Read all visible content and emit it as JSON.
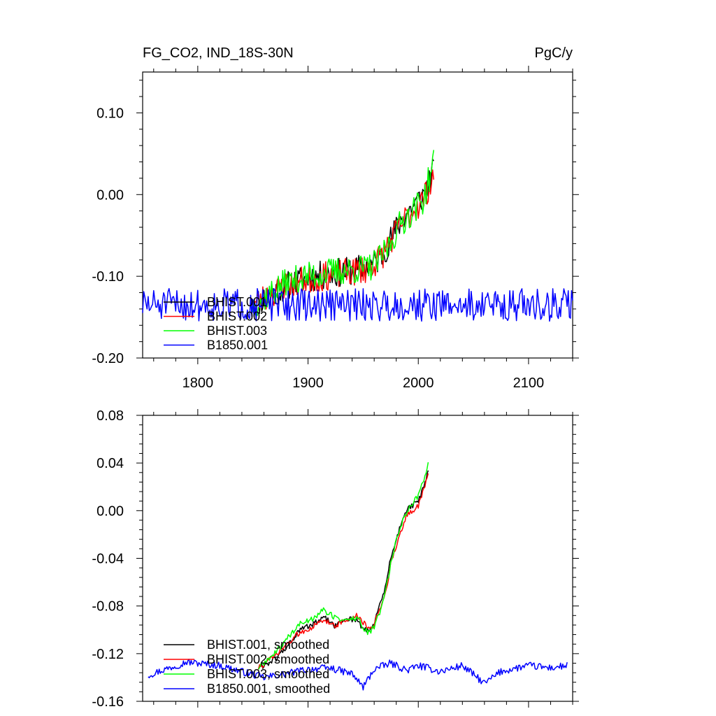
{
  "header": {
    "left_title": "FG_CO2, IND_18S-30N",
    "right_title": "PgC/y"
  },
  "chart_data": [
    {
      "type": "line",
      "title": "FG_CO2, IND_18S-30N",
      "units": "PgC/y",
      "xlim": [
        1750,
        2140
      ],
      "ylim": [
        -0.2,
        0.15
      ],
      "x_ticks": [
        1800,
        1900,
        2000,
        2100
      ],
      "x_tick_labels": [
        "1800",
        "1900",
        "2000",
        "2100"
      ],
      "y_ticks": [
        -0.2,
        -0.1,
        0.0,
        0.1
      ],
      "y_tick_labels": [
        "-0.20",
        "-0.10",
        "0.00",
        "0.10"
      ],
      "legend_position": "bottom-left",
      "series": [
        {
          "name": "BHIST.001",
          "color": "#000000",
          "x_start": 1850,
          "x_end": 2014,
          "anchors": [
            [
              1850,
              -0.135
            ],
            [
              1880,
              -0.112
            ],
            [
              1900,
              -0.102
            ],
            [
              1920,
              -0.097
            ],
            [
              1940,
              -0.093
            ],
            [
              1955,
              -0.088
            ],
            [
              1965,
              -0.078
            ],
            [
              1975,
              -0.055
            ],
            [
              1985,
              -0.03
            ],
            [
              1995,
              -0.015
            ],
            [
              2005,
              0.0
            ],
            [
              2014,
              0.03
            ]
          ],
          "noise": 0.018,
          "seed": 11
        },
        {
          "name": "BHIST.002",
          "color": "#ff0000",
          "x_start": 1850,
          "x_end": 2014,
          "anchors": [
            [
              1850,
              -0.135
            ],
            [
              1880,
              -0.11
            ],
            [
              1900,
              -0.104
            ],
            [
              1920,
              -0.099
            ],
            [
              1940,
              -0.095
            ],
            [
              1955,
              -0.09
            ],
            [
              1965,
              -0.078
            ],
            [
              1975,
              -0.057
            ],
            [
              1985,
              -0.035
            ],
            [
              1995,
              -0.02
            ],
            [
              2005,
              -0.005
            ],
            [
              2014,
              0.025
            ]
          ],
          "noise": 0.018,
          "seed": 23
        },
        {
          "name": "BHIST.003",
          "color": "#00ff00",
          "x_start": 1850,
          "x_end": 2014,
          "anchors": [
            [
              1850,
              -0.135
            ],
            [
              1880,
              -0.108
            ],
            [
              1900,
              -0.1
            ],
            [
              1920,
              -0.095
            ],
            [
              1940,
              -0.092
            ],
            [
              1955,
              -0.09
            ],
            [
              1965,
              -0.08
            ],
            [
              1975,
              -0.058
            ],
            [
              1985,
              -0.033
            ],
            [
              1995,
              -0.02
            ],
            [
              2005,
              -0.005
            ],
            [
              2014,
              0.04
            ]
          ],
          "noise": 0.018,
          "seed": 37
        },
        {
          "name": "B1850.001",
          "color": "#0000ff",
          "x_start": 1750,
          "x_end": 2140,
          "anchors": [
            [
              1750,
              -0.135
            ],
            [
              2140,
              -0.135
            ]
          ],
          "noise": 0.02,
          "seed": 51
        }
      ]
    },
    {
      "type": "line",
      "xlim": [
        1750,
        2140
      ],
      "ylim": [
        -0.16,
        0.08
      ],
      "x_ticks": [
        1800,
        1900,
        2000,
        2100
      ],
      "y_ticks": [
        -0.16,
        -0.12,
        -0.08,
        -0.04,
        0.0,
        0.04,
        0.08
      ],
      "y_tick_labels": [
        "-0.16",
        "-0.12",
        "-0.08",
        "-0.04",
        "0.00",
        "0.04",
        "0.08"
      ],
      "legend_position": "bottom-left",
      "series": [
        {
          "name": "BHIST.001, smoothed",
          "color": "#000000",
          "x_start": 1855,
          "x_end": 2009,
          "anchors": [
            [
              1855,
              -0.132
            ],
            [
              1870,
              -0.125
            ],
            [
              1880,
              -0.115
            ],
            [
              1893,
              -0.1
            ],
            [
              1905,
              -0.095
            ],
            [
              1915,
              -0.09
            ],
            [
              1925,
              -0.097
            ],
            [
              1935,
              -0.09
            ],
            [
              1945,
              -0.092
            ],
            [
              1950,
              -0.1
            ],
            [
              1955,
              -0.101
            ],
            [
              1960,
              -0.095
            ],
            [
              1965,
              -0.08
            ],
            [
              1970,
              -0.065
            ],
            [
              1975,
              -0.04
            ],
            [
              1980,
              -0.025
            ],
            [
              1985,
              -0.008
            ],
            [
              1990,
              0.002
            ],
            [
              1995,
              0.004
            ],
            [
              2000,
              0.008
            ],
            [
              2005,
              0.02
            ],
            [
              2009,
              0.032
            ]
          ],
          "noise": 0.0025,
          "seed": 61
        },
        {
          "name": "BHIST.002, smoothed",
          "color": "#ff0000",
          "x_start": 1855,
          "x_end": 2009,
          "anchors": [
            [
              1855,
              -0.132
            ],
            [
              1870,
              -0.122
            ],
            [
              1880,
              -0.113
            ],
            [
              1893,
              -0.102
            ],
            [
              1905,
              -0.097
            ],
            [
              1915,
              -0.092
            ],
            [
              1925,
              -0.096
            ],
            [
              1935,
              -0.092
            ],
            [
              1945,
              -0.088
            ],
            [
              1950,
              -0.094
            ],
            [
              1955,
              -0.1
            ],
            [
              1960,
              -0.095
            ],
            [
              1965,
              -0.082
            ],
            [
              1970,
              -0.07
            ],
            [
              1975,
              -0.045
            ],
            [
              1980,
              -0.03
            ],
            [
              1985,
              -0.015
            ],
            [
              1990,
              -0.003
            ],
            [
              1995,
              0.0
            ],
            [
              2000,
              0.004
            ],
            [
              2005,
              0.018
            ],
            [
              2009,
              0.03
            ]
          ],
          "noise": 0.0025,
          "seed": 73
        },
        {
          "name": "BHIST.003, smoothed",
          "color": "#00ff00",
          "x_start": 1855,
          "x_end": 2009,
          "anchors": [
            [
              1855,
              -0.132
            ],
            [
              1870,
              -0.12
            ],
            [
              1880,
              -0.108
            ],
            [
              1893,
              -0.095
            ],
            [
              1905,
              -0.09
            ],
            [
              1913,
              -0.083
            ],
            [
              1925,
              -0.09
            ],
            [
              1935,
              -0.092
            ],
            [
              1945,
              -0.09
            ],
            [
              1950,
              -0.098
            ],
            [
              1955,
              -0.103
            ],
            [
              1960,
              -0.098
            ],
            [
              1965,
              -0.085
            ],
            [
              1970,
              -0.068
            ],
            [
              1975,
              -0.045
            ],
            [
              1980,
              -0.025
            ],
            [
              1985,
              -0.01
            ],
            [
              1990,
              0.0
            ],
            [
              1995,
              0.007
            ],
            [
              2000,
              0.012
            ],
            [
              2005,
              0.027
            ],
            [
              2009,
              0.04
            ]
          ],
          "noise": 0.0025,
          "seed": 89
        },
        {
          "name": "B1850.001, smoothed",
          "color": "#0000ff",
          "x_start": 1755,
          "x_end": 2135,
          "anchors": [
            [
              1755,
              -0.138
            ],
            [
              1790,
              -0.127
            ],
            [
              1820,
              -0.13
            ],
            [
              1840,
              -0.135
            ],
            [
              1860,
              -0.14
            ],
            [
              1880,
              -0.137
            ],
            [
              1900,
              -0.133
            ],
            [
              1920,
              -0.132
            ],
            [
              1940,
              -0.137
            ],
            [
              1950,
              -0.148
            ],
            [
              1960,
              -0.133
            ],
            [
              1975,
              -0.128
            ],
            [
              1990,
              -0.134
            ],
            [
              2000,
              -0.13
            ],
            [
              2020,
              -0.135
            ],
            [
              2040,
              -0.13
            ],
            [
              2060,
              -0.145
            ],
            [
              2075,
              -0.135
            ],
            [
              2100,
              -0.13
            ],
            [
              2120,
              -0.132
            ],
            [
              2135,
              -0.13
            ]
          ],
          "noise": 0.003,
          "seed": 97
        }
      ]
    }
  ]
}
